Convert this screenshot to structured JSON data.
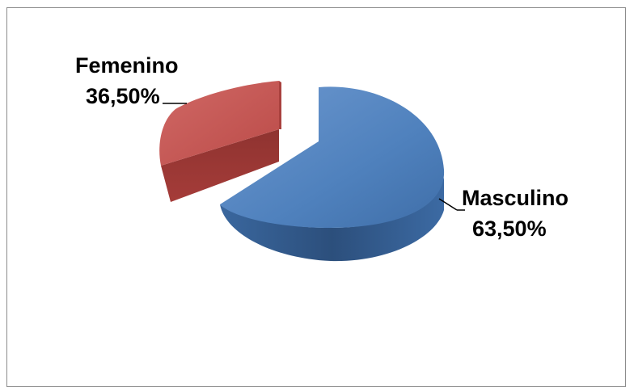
{
  "chart_data": {
    "type": "pie",
    "style": "3d-exploded",
    "slices": [
      {
        "label": "Masculino",
        "value": 63.5,
        "value_text": "63,50%",
        "color": "#4f81bd"
      },
      {
        "label": "Femenino",
        "value": 36.5,
        "value_text": "36,50%",
        "color": "#c0504d"
      }
    ],
    "legend": "none",
    "data_labels": "outside with leader lines"
  }
}
